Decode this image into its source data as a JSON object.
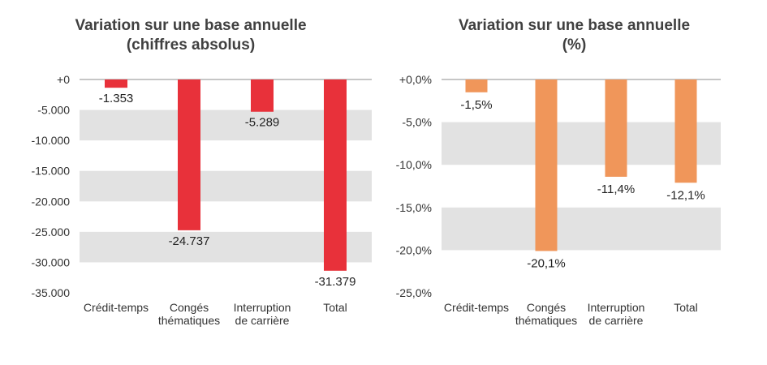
{
  "chart_data": [
    {
      "type": "bar",
      "title_lines": [
        "Variation sur une base annuelle",
        "(chiffres absolus)"
      ],
      "categories": [
        [
          "Crédit-temps"
        ],
        [
          "Congés",
          "thématiques"
        ],
        [
          "Interruption",
          "de carrière"
        ],
        [
          "Total"
        ]
      ],
      "values": [
        -1353,
        -24737,
        -5289,
        -31379
      ],
      "value_labels": [
        "-1.353",
        "-24.737",
        "-5.289",
        "-31.379"
      ],
      "yticks": [
        0,
        -5000,
        -10000,
        -15000,
        -20000,
        -25000,
        -30000,
        -35000
      ],
      "ytick_labels": [
        "+0",
        "-5.000",
        "-10.000",
        "-15.000",
        "-20.000",
        "-25.000",
        "-30.000",
        "-35.000"
      ],
      "ylim": [
        -35000,
        0
      ],
      "bar_color": "#e8313a",
      "band_color": "#e2e2e2",
      "legend": "none"
    },
    {
      "type": "bar",
      "title_lines": [
        "Variation sur une base annuelle",
        "(%)"
      ],
      "categories": [
        [
          "Crédit-temps"
        ],
        [
          "Congés",
          "thématiques"
        ],
        [
          "Interruption",
          "de carrière"
        ],
        [
          "Total"
        ]
      ],
      "values": [
        -1.5,
        -20.1,
        -11.4,
        -12.1
      ],
      "value_labels": [
        "-1,5%",
        "-20,1%",
        "-11,4%",
        "-12,1%"
      ],
      "yticks": [
        0,
        -5,
        -10,
        -15,
        -20,
        -25
      ],
      "ytick_labels": [
        "+0,0%",
        "-5,0%",
        "-10,0%",
        "-15,0%",
        "-20,0%",
        "-25,0%"
      ],
      "ylim": [
        -25,
        0
      ],
      "bar_color": "#f0965a",
      "band_color": "#e2e2e2",
      "legend": "none"
    }
  ]
}
